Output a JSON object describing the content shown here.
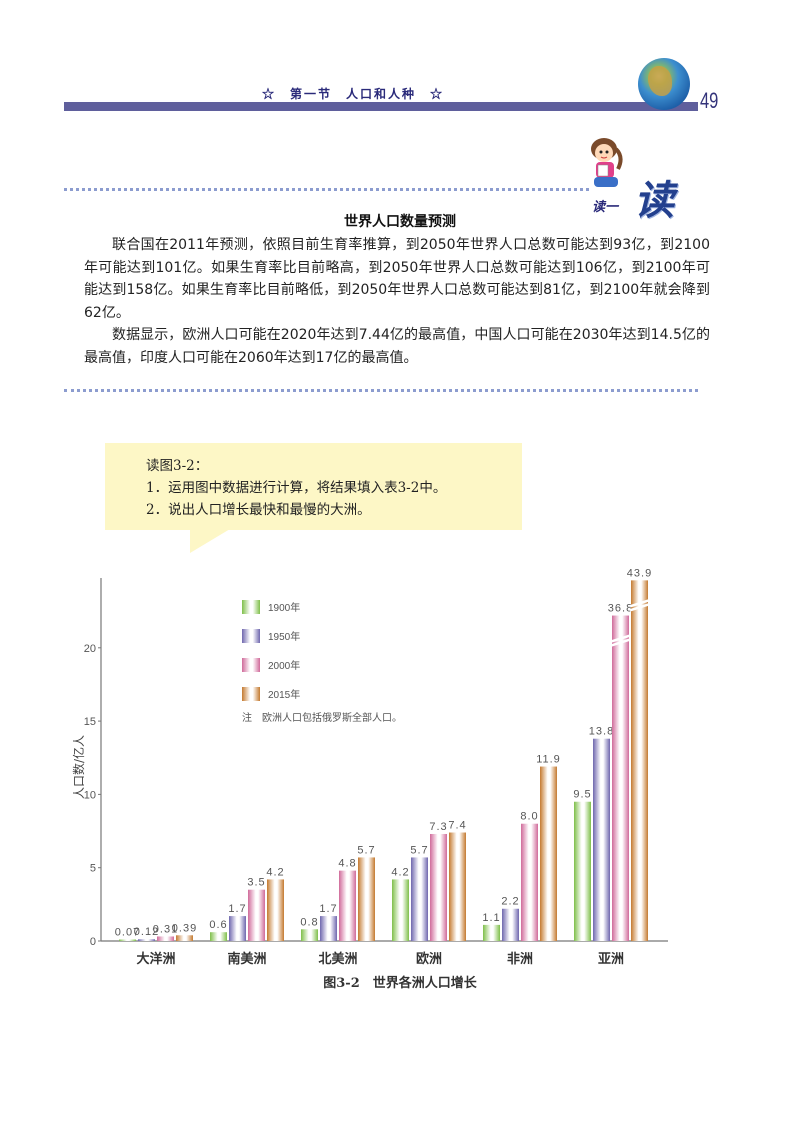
{
  "header": {
    "section_title": "☆　第一节　人口和人种　☆",
    "page_number": "49",
    "globe_icon": "globe-icon"
  },
  "reading_box": {
    "badge_small": "读一",
    "badge_big": "读",
    "title": "世界人口数量预测",
    "paragraphs": [
      "联合国在2011年预测，依照目前生育率推算，到2050年世界人口总数可能达到93亿，到2100年可能达到101亿。如果生育率比目前略高，到2050年世界人口总数可能达到106亿，到2100年可能达到158亿。如果生育率比目前略低，到2050年世界人口总数可能达到81亿，到2100年就会降到62亿。",
      "数据显示，欧洲人口可能在2020年达到7.44亿的最高值，中国人口可能在2030年达到14.5亿的最高值，印度人口可能在2060年达到17亿的最高值。"
    ]
  },
  "callout": {
    "lines": [
      "读图3-2：",
      "1．运用图中数据进行计算，将结果填入表3-2中。",
      "2．说出人口增长最快和最慢的大洲。"
    ]
  },
  "chart_data": {
    "type": "bar",
    "title": "图3-2　世界各洲人口增长",
    "xlabel": "",
    "ylabel": "人口数/亿人",
    "ylim": [
      0,
      25
    ],
    "yticks": [
      0,
      5,
      10,
      15,
      20
    ],
    "grid": false,
    "legend_position": "upper-left-inside",
    "categories": [
      "大洋洲",
      "南美洲",
      "北美洲",
      "欧洲",
      "非洲",
      "亚洲"
    ],
    "series": [
      {
        "name": "1900年",
        "color": "#7fbf4a",
        "values": [
          0.07,
          0.6,
          0.8,
          4.2,
          1.1,
          9.5
        ]
      },
      {
        "name": "1950年",
        "color": "#6f67ae",
        "values": [
          0.12,
          1.7,
          1.7,
          5.7,
          2.2,
          13.8
        ]
      },
      {
        "name": "2000年",
        "color": "#d06a9a",
        "values": [
          0.31,
          3.5,
          4.8,
          7.3,
          8.0,
          36.8
        ]
      },
      {
        "name": "2015年",
        "color": "#c47a30",
        "values": [
          0.39,
          4.2,
          5.7,
          7.4,
          11.9,
          43.9
        ]
      }
    ],
    "value_labels": [
      [
        "0.07",
        "0.6",
        "0.8",
        "4.2",
        "1.1",
        "9.5"
      ],
      [
        "0.12",
        "1.7",
        "1.7",
        "5.7",
        "2.2",
        "13.8"
      ],
      [
        "0.31",
        "3.5",
        "4.8",
        "7.3",
        "8.0",
        "36.8"
      ],
      [
        "0.39",
        "4.2",
        "5.7",
        "7.4",
        "11.9",
        "43.9"
      ]
    ],
    "broken_axis_note": "亚洲2000年与2015年柱体截断显示",
    "annotation": "注　欧洲人口包括俄罗斯全部人口。"
  }
}
